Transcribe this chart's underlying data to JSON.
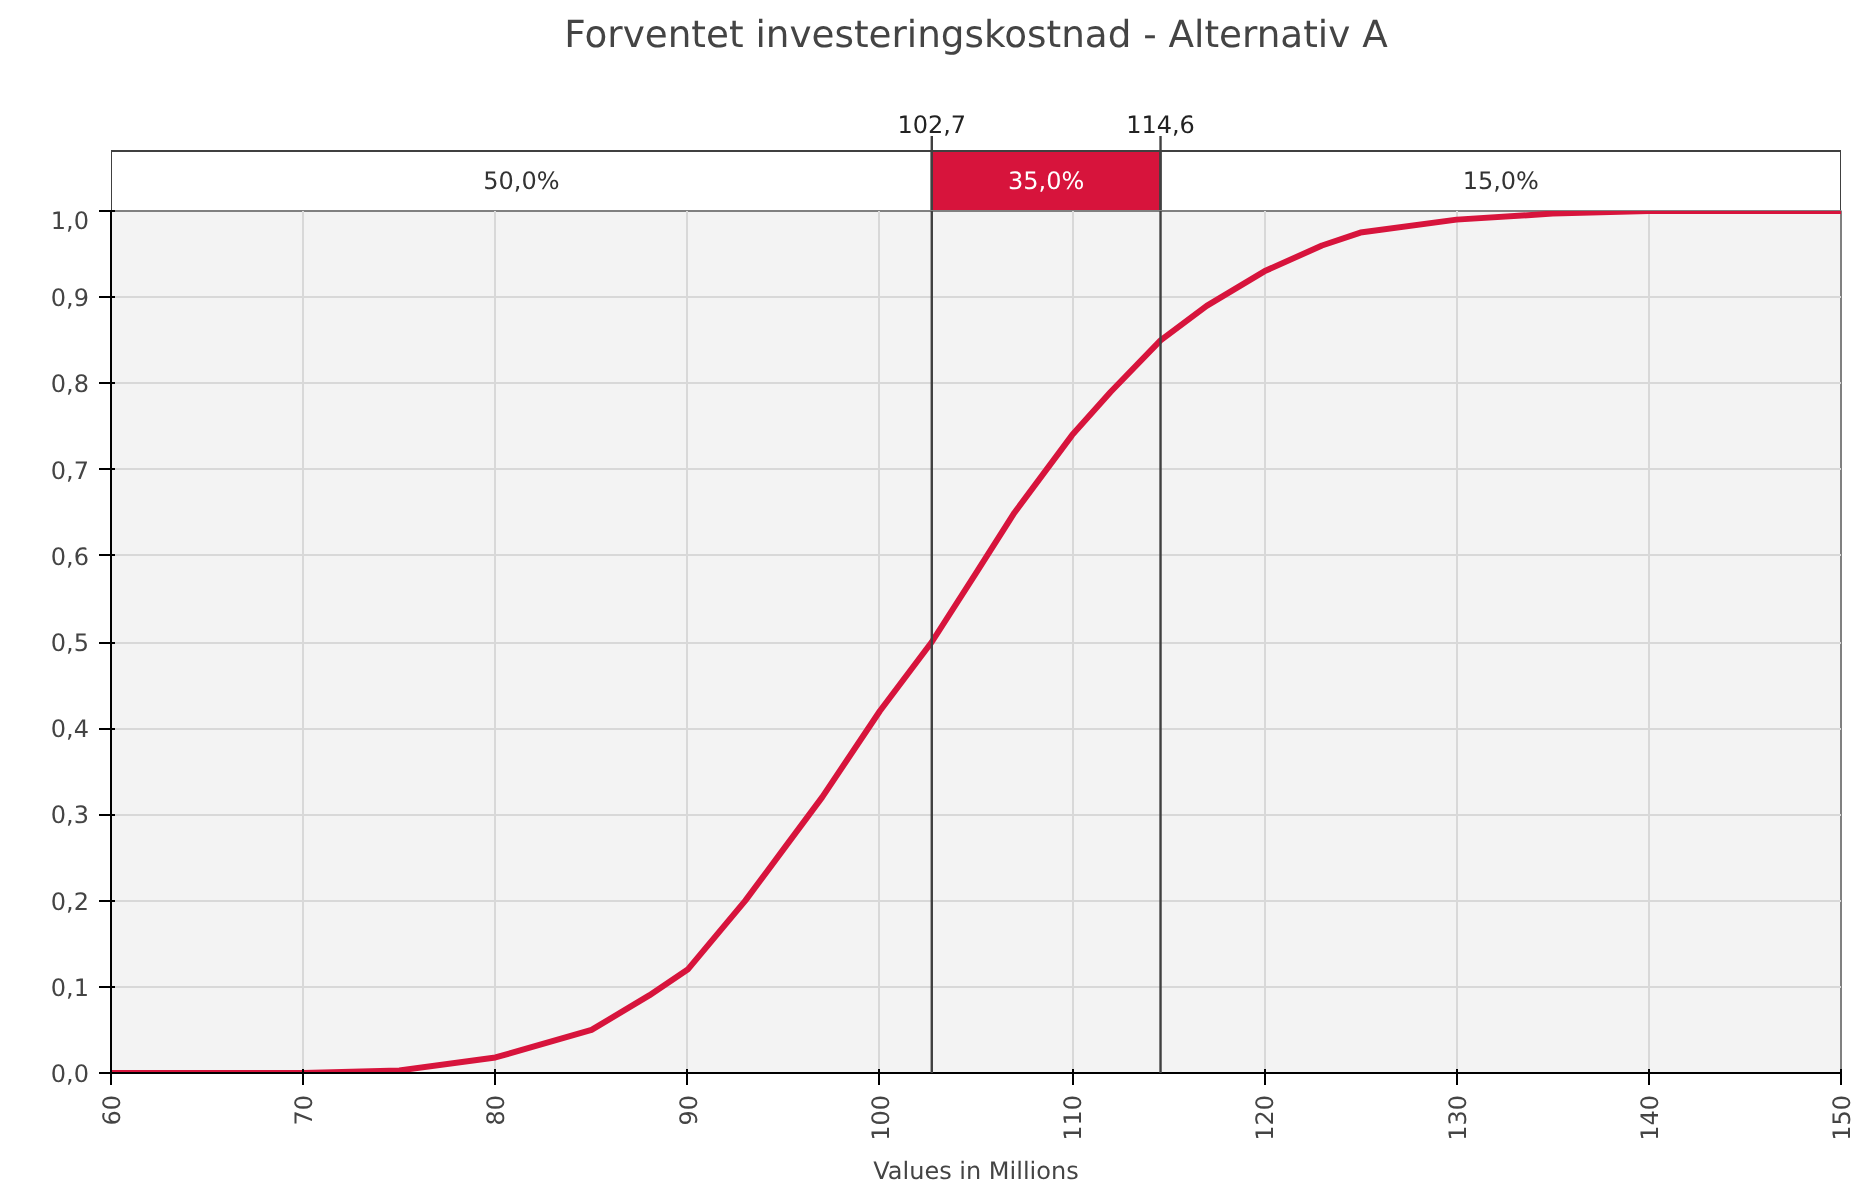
{
  "chart_data": {
    "type": "line",
    "title": "Forventet investeringskostnad - Alternativ A",
    "xlabel": "Values in Millions",
    "x": [
      60,
      70,
      75,
      80,
      85,
      88,
      90,
      93,
      95,
      97,
      100,
      102.7,
      105,
      107,
      110,
      112,
      114.6,
      117,
      120,
      123,
      125,
      130,
      135,
      140,
      150
    ],
    "series": [
      {
        "color": "#d7143c",
        "values": [
          0,
          0,
          0.003,
          0.018,
          0.05,
          0.09,
          0.12,
          0.2,
          0.26,
          0.32,
          0.42,
          0.5,
          0.58,
          0.65,
          0.74,
          0.79,
          0.85,
          0.89,
          0.93,
          0.96,
          0.975,
          0.99,
          0.997,
          1.0,
          1.0
        ]
      }
    ],
    "xlim": [
      60,
      150
    ],
    "xticks": [
      60,
      70,
      80,
      90,
      100,
      110,
      120,
      130,
      140,
      150
    ],
    "ylim": [
      0,
      1
    ],
    "yticks": [
      {
        "value": 0,
        "label": "0,0"
      },
      {
        "value": 0.1,
        "label": "0,1"
      },
      {
        "value": 0.2,
        "label": "0,2"
      },
      {
        "value": 0.3,
        "label": "0,3"
      },
      {
        "value": 0.4,
        "label": "0,4"
      },
      {
        "value": 0.5,
        "label": "0,5"
      },
      {
        "value": 0.6,
        "label": "0,6"
      },
      {
        "value": 0.7,
        "label": "0,7"
      },
      {
        "value": 0.8,
        "label": "0,8"
      },
      {
        "value": 0.9,
        "label": "0,9"
      },
      {
        "value": 1,
        "label": "1,0"
      }
    ],
    "ref_lines": [
      {
        "axis": "x",
        "value": 102.7,
        "label": "102,7",
        "color": "#404040"
      },
      {
        "axis": "x",
        "value": 114.6,
        "label": "114,6",
        "color": "#404040"
      }
    ],
    "annotations": [
      "50,0%",
      "35,0%",
      "15,0%"
    ],
    "grid": true,
    "line_style": "solid",
    "marker": "none"
  }
}
